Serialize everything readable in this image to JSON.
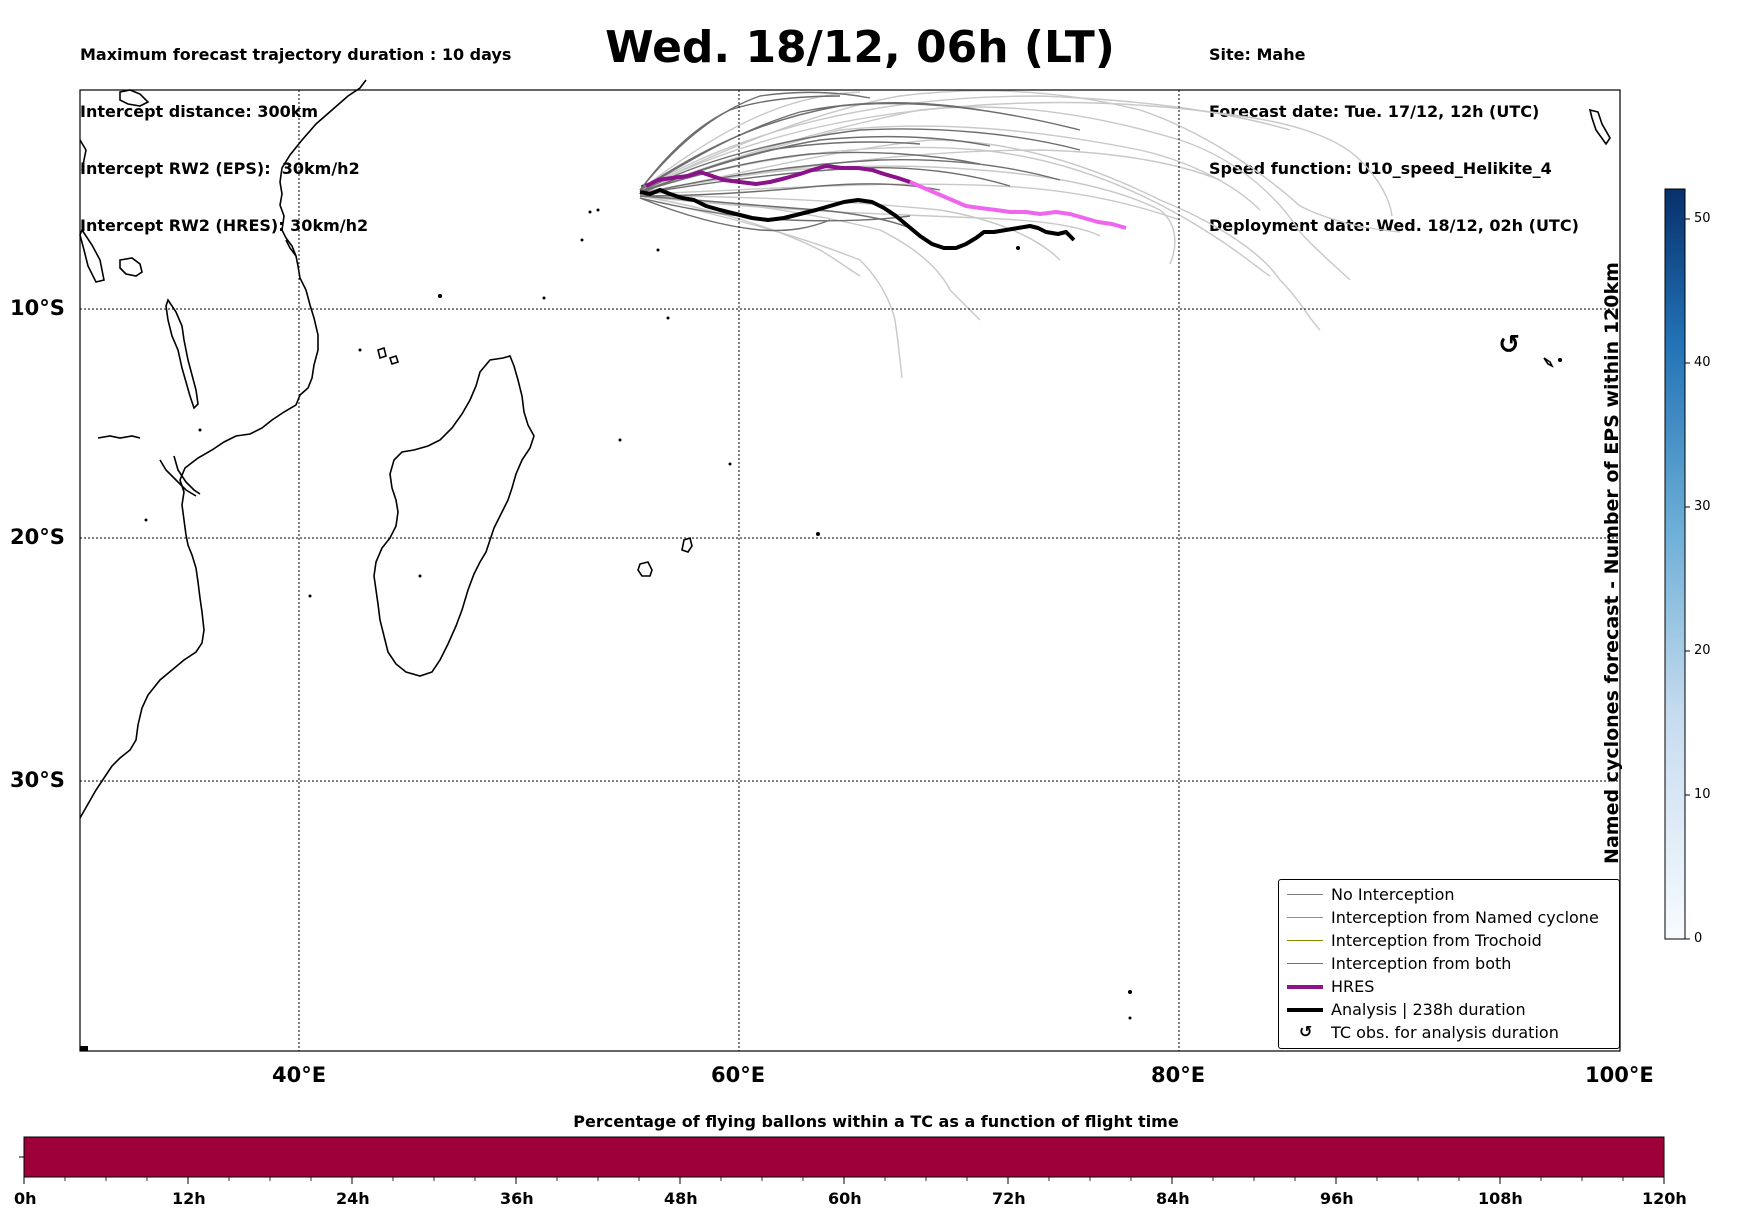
{
  "header_left": [
    "Maximum forecast trajectory duration : 10 days",
    "Intercept distance: 300km",
    "Intercept RW2 (EPS):  30km/h2",
    "Intercept RW2 (HRES): 30km/h2"
  ],
  "title": "Wed. 18/12, 06h (LT)",
  "header_right": [
    "Site: Mahe",
    "Forecast date: Tue. 17/12, 12h (UTC)",
    "Speed function: U10_speed_Helikite_4",
    "Deployment date: Wed. 18/12, 02h (UTC)"
  ],
  "map": {
    "lat_labels": [
      "10°S",
      "20°S",
      "30°S"
    ],
    "lon_labels": [
      "40°E",
      "60°E",
      "80°E",
      "100°E"
    ],
    "extent": {
      "lon_min": 30,
      "lon_max": 100,
      "lat_min": -42,
      "lat_max": 0.3
    }
  },
  "tc_symbol": "↺",
  "legend": [
    {
      "label": "No Interception",
      "color": "#808080",
      "kind": "thin"
    },
    {
      "label": "Interception from Named cyclone",
      "color": "#ff6a3a",
      "kind": "thin"
    },
    {
      "label": "Interception from Trochoid",
      "color": "#8b8b00",
      "kind": "thin"
    },
    {
      "label": "Interception from both",
      "color": "#2ca02c",
      "kind": "thin"
    },
    {
      "label": "HRES",
      "color": "#8b128b",
      "kind": "thick"
    },
    {
      "label": "Analysis | 238h duration",
      "color": "#000000",
      "kind": "thick"
    },
    {
      "label": "TC obs. for analysis duration",
      "color": "#000000",
      "kind": "symbol",
      "symbol": "↺"
    }
  ],
  "colorbar": {
    "label": "Named cyclones forecast - Number of EPS within 120km",
    "ticks": [
      "0",
      "10",
      "20",
      "30",
      "40",
      "50"
    ],
    "colors": [
      "#f7fbff",
      "#9ecae1",
      "#4292c6",
      "#08306b"
    ]
  },
  "hbar": {
    "title": "Percentage of flying ballons within a TC as a function of flight time",
    "ticks": [
      "0h",
      "12h",
      "24h",
      "36h",
      "48h",
      "60h",
      "72h",
      "84h",
      "96h",
      "108h",
      "120h"
    ],
    "fill_color": "#9e003a"
  }
}
